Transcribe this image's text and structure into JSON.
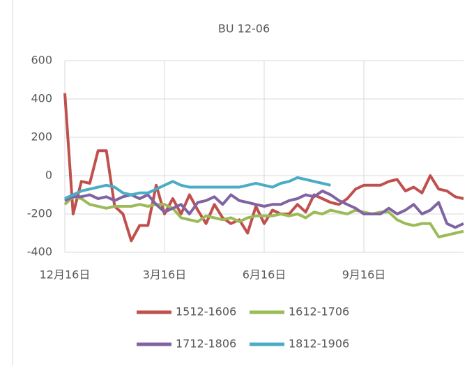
{
  "chart_data": {
    "type": "line",
    "title": "BU 12-06",
    "categories": [
      "12月16日",
      null,
      null,
      null,
      null,
      null,
      null,
      null,
      null,
      null,
      null,
      null,
      "3月16日",
      null,
      null,
      null,
      null,
      null,
      null,
      null,
      null,
      null,
      null,
      null,
      "6月16日",
      null,
      null,
      null,
      null,
      null,
      null,
      null,
      null,
      null,
      null,
      null,
      "9月16日",
      null,
      null,
      null,
      null,
      null,
      null,
      null,
      null,
      null,
      null,
      null,
      null
    ],
    "ylim": [
      -400,
      600
    ],
    "yticks": [
      -400,
      -200,
      0,
      200,
      400,
      600
    ],
    "grid": true,
    "series": [
      {
        "name": "1512-1606",
        "color": "#c0504d",
        "values": [
          430,
          -200,
          -30,
          -40,
          130,
          130,
          -160,
          -200,
          -340,
          -260,
          -260,
          -50,
          -200,
          -120,
          -200,
          -100,
          -180,
          -250,
          -150,
          -220,
          -250,
          -230,
          -300,
          -160,
          -250,
          -180,
          -200,
          -200,
          -150,
          -190,
          -100,
          -120,
          -140,
          -150,
          -120,
          -70,
          -50,
          -50,
          -50,
          -30,
          -20,
          -80,
          -60,
          -90,
          0,
          -70,
          -80,
          -110,
          -120
        ]
      },
      {
        "name": "1612-1706",
        "color": "#9bbb59",
        "values": [
          -150,
          -110,
          -120,
          -150,
          -160,
          -170,
          -160,
          -160,
          -160,
          -150,
          -160,
          -150,
          -150,
          -170,
          -220,
          -230,
          -240,
          -210,
          -220,
          -230,
          -220,
          -240,
          -220,
          -210,
          -210,
          -210,
          -200,
          -210,
          -200,
          -220,
          -190,
          -200,
          -180,
          -190,
          -200,
          -180,
          -190,
          -200,
          -190,
          -190,
          -230,
          -250,
          -260,
          -250,
          -250,
          -320,
          -310,
          -300,
          -290
        ]
      },
      {
        "name": "1712-1806",
        "color": "#8064a2",
        "values": [
          -130,
          -110,
          -110,
          -100,
          -120,
          -110,
          -130,
          -110,
          -100,
          -120,
          -100,
          -150,
          -190,
          -170,
          -150,
          -200,
          -140,
          -130,
          -110,
          -150,
          -100,
          -130,
          -140,
          -150,
          -160,
          -150,
          -150,
          -130,
          -120,
          -100,
          -110,
          -80,
          -100,
          -130,
          -150,
          -170,
          -200,
          -200,
          -200,
          -170,
          -200,
          -180,
          -150,
          -200,
          -180,
          -140,
          -250,
          -270,
          -250
        ]
      },
      {
        "name": "1812-1906",
        "color": "#4bacc6",
        "values": [
          -120,
          -100,
          -80,
          -70,
          -60,
          -50,
          -60,
          -90,
          -100,
          -90,
          -90,
          -70,
          -50,
          -30,
          -50,
          -60,
          -60,
          -60,
          -60,
          -60,
          -60,
          -60,
          -50,
          -40,
          -50,
          -60,
          -40,
          -30,
          -10,
          -20,
          -30,
          -40,
          -50,
          null,
          null,
          null,
          null,
          null,
          null,
          null,
          null,
          null,
          null,
          null,
          null,
          null,
          null,
          null,
          null
        ]
      }
    ]
  }
}
